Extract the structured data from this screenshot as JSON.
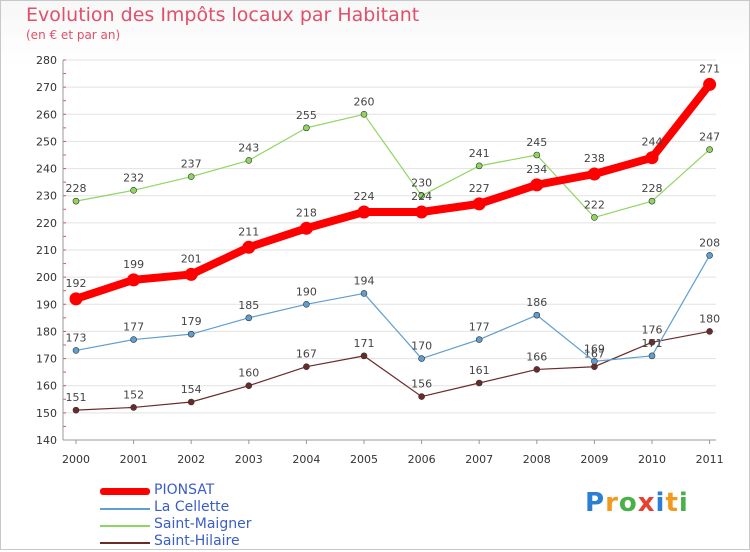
{
  "chart_data": {
    "type": "line",
    "title": "Evolution des Impôts locaux par Habitant",
    "subtitle": "(en € et par an)",
    "x": [
      "2000",
      "2001",
      "2002",
      "2003",
      "2004",
      "2005",
      "2006",
      "2007",
      "2008",
      "2009",
      "2010",
      "2011"
    ],
    "yticks": [
      "140",
      "150",
      "160",
      "170",
      "180",
      "190",
      "200",
      "210",
      "220",
      "230",
      "240",
      "250",
      "260",
      "270",
      "280"
    ],
    "ylim": [
      140,
      280
    ],
    "series": [
      {
        "name": "PIONSAT",
        "color": "#ff0000",
        "values": [
          192,
          199,
          201,
          211,
          218,
          224,
          224,
          227,
          234,
          238,
          244,
          271
        ]
      },
      {
        "name": "La Cellette",
        "color": "#5f9ecf",
        "values": [
          173,
          177,
          179,
          185,
          190,
          194,
          170,
          177,
          186,
          169,
          171,
          208
        ]
      },
      {
        "name": "Saint-Maigner",
        "color": "#8fd660",
        "values": [
          228,
          232,
          237,
          243,
          255,
          260,
          230,
          241,
          245,
          222,
          228,
          247
        ]
      },
      {
        "name": "Saint-Hilaire",
        "color": "#6b2a2a",
        "values": [
          151,
          152,
          154,
          160,
          167,
          171,
          156,
          161,
          166,
          167,
          176,
          180
        ]
      }
    ]
  },
  "logo": {
    "letters": [
      "P",
      "r",
      "o",
      "x",
      "i",
      "t",
      "i"
    ]
  }
}
